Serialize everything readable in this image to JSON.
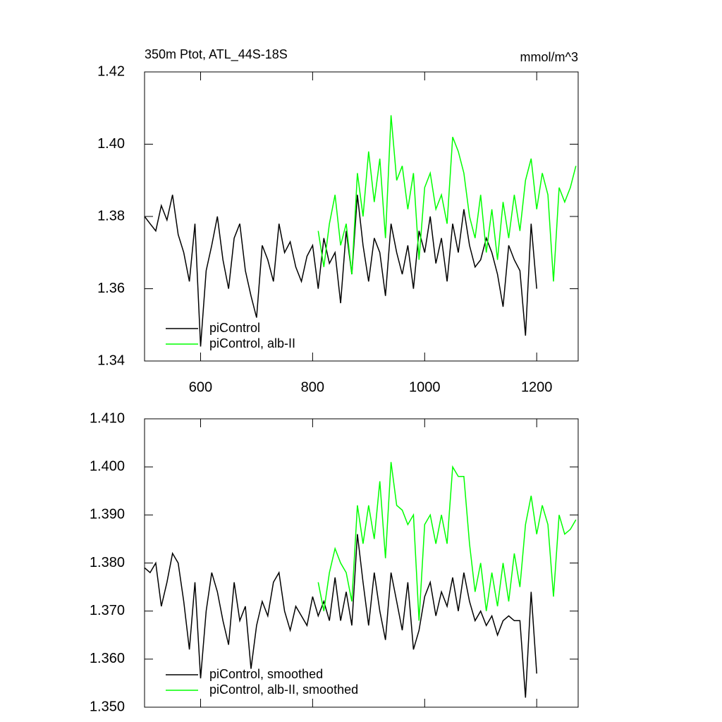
{
  "chart_data": [
    {
      "type": "line",
      "title": "350m Ptot, ATL_44S-18S",
      "units": "mmol/m^3",
      "xlim": [
        500,
        1274
      ],
      "xticks": [
        600,
        800,
        1000,
        1200
      ],
      "show_xtick_labels": true,
      "ylim": [
        1.34,
        1.42
      ],
      "yticks": [
        1.34,
        1.36,
        1.38,
        {
          "value": 1.4,
          "label": "1.40"
        },
        1.42
      ],
      "legend": "lower left",
      "series": [
        {
          "name": "piControl",
          "color": "#000000",
          "x": [
            500,
            510,
            520,
            530,
            540,
            550,
            560,
            570,
            580,
            590,
            600,
            610,
            620,
            630,
            640,
            650,
            660,
            670,
            680,
            690,
            700,
            710,
            720,
            730,
            740,
            750,
            760,
            770,
            780,
            790,
            800,
            810,
            820,
            830,
            840,
            850,
            860,
            870,
            880,
            890,
            900,
            910,
            920,
            930,
            940,
            950,
            960,
            970,
            980,
            990,
            1000,
            1010,
            1020,
            1030,
            1040,
            1050,
            1060,
            1070,
            1080,
            1090,
            1100,
            1110,
            1120,
            1130,
            1140,
            1150,
            1160,
            1170,
            1180,
            1190,
            1200
          ],
          "values": [
            1.38,
            1.378,
            1.376,
            1.383,
            1.379,
            1.386,
            1.375,
            1.37,
            1.362,
            1.378,
            1.344,
            1.365,
            1.372,
            1.38,
            1.368,
            1.36,
            1.374,
            1.378,
            1.365,
            1.358,
            1.352,
            1.372,
            1.368,
            1.362,
            1.378,
            1.37,
            1.373,
            1.366,
            1.362,
            1.369,
            1.372,
            1.36,
            1.374,
            1.367,
            1.37,
            1.356,
            1.376,
            1.364,
            1.386,
            1.372,
            1.362,
            1.374,
            1.37,
            1.358,
            1.378,
            1.37,
            1.364,
            1.372,
            1.36,
            1.376,
            1.37,
            1.38,
            1.367,
            1.374,
            1.362,
            1.378,
            1.37,
            1.382,
            1.372,
            1.366,
            1.368,
            1.374,
            1.37,
            1.364,
            1.355,
            1.372,
            1.368,
            1.365,
            1.347,
            1.378,
            1.36
          ]
        },
        {
          "name": "piControl, alb-II",
          "color": "#00ff00",
          "x": [
            810,
            820,
            830,
            840,
            850,
            860,
            870,
            880,
            890,
            900,
            910,
            920,
            930,
            940,
            950,
            960,
            970,
            980,
            990,
            1000,
            1010,
            1020,
            1030,
            1040,
            1050,
            1060,
            1070,
            1080,
            1090,
            1100,
            1110,
            1120,
            1130,
            1140,
            1150,
            1160,
            1170,
            1180,
            1190,
            1200,
            1210,
            1220,
            1230,
            1240,
            1250,
            1260,
            1270
          ],
          "values": [
            1.376,
            1.366,
            1.378,
            1.386,
            1.372,
            1.378,
            1.364,
            1.392,
            1.38,
            1.398,
            1.384,
            1.396,
            1.374,
            1.408,
            1.39,
            1.394,
            1.382,
            1.392,
            1.368,
            1.388,
            1.392,
            1.382,
            1.386,
            1.378,
            1.402,
            1.398,
            1.392,
            1.38,
            1.374,
            1.386,
            1.37,
            1.382,
            1.368,
            1.384,
            1.374,
            1.386,
            1.376,
            1.39,
            1.396,
            1.382,
            1.392,
            1.386,
            1.362,
            1.388,
            1.384,
            1.388,
            1.394
          ]
        }
      ]
    },
    {
      "type": "line",
      "xlim": [
        500,
        1274
      ],
      "xticks": [
        600,
        800,
        1000,
        1200
      ],
      "show_xtick_labels": false,
      "ylim": [
        1.35,
        1.41
      ],
      "yticks": [
        {
          "value": 1.35,
          "label": "1.350"
        },
        {
          "value": 1.36,
          "label": "1.360"
        },
        {
          "value": 1.37,
          "label": "1.370"
        },
        {
          "value": 1.38,
          "label": "1.380"
        },
        {
          "value": 1.39,
          "label": "1.390"
        },
        {
          "value": 1.4,
          "label": "1.400"
        },
        {
          "value": 1.41,
          "label": "1.410"
        }
      ],
      "legend": "lower left",
      "series": [
        {
          "name": "piControl, smoothed",
          "color": "#000000",
          "x": [
            500,
            510,
            520,
            530,
            540,
            550,
            560,
            570,
            580,
            590,
            600,
            610,
            620,
            630,
            640,
            650,
            660,
            670,
            680,
            690,
            700,
            710,
            720,
            730,
            740,
            750,
            760,
            770,
            780,
            790,
            800,
            810,
            820,
            830,
            840,
            850,
            860,
            870,
            880,
            890,
            900,
            910,
            920,
            930,
            940,
            950,
            960,
            970,
            980,
            990,
            1000,
            1010,
            1020,
            1030,
            1040,
            1050,
            1060,
            1070,
            1080,
            1090,
            1100,
            1110,
            1120,
            1130,
            1140,
            1150,
            1160,
            1170,
            1180,
            1190,
            1200
          ],
          "values": [
            1.379,
            1.378,
            1.38,
            1.371,
            1.376,
            1.382,
            1.38,
            1.372,
            1.362,
            1.376,
            1.356,
            1.37,
            1.378,
            1.374,
            1.368,
            1.363,
            1.376,
            1.368,
            1.371,
            1.358,
            1.367,
            1.372,
            1.369,
            1.376,
            1.378,
            1.37,
            1.366,
            1.371,
            1.369,
            1.367,
            1.373,
            1.369,
            1.372,
            1.368,
            1.377,
            1.368,
            1.374,
            1.367,
            1.386,
            1.376,
            1.367,
            1.378,
            1.37,
            1.364,
            1.378,
            1.372,
            1.366,
            1.376,
            1.362,
            1.366,
            1.373,
            1.376,
            1.369,
            1.374,
            1.371,
            1.377,
            1.37,
            1.378,
            1.372,
            1.368,
            1.37,
            1.367,
            1.369,
            1.365,
            1.368,
            1.369,
            1.368,
            1.368,
            1.352,
            1.374,
            1.357
          ]
        },
        {
          "name": "piControl, alb-II, smoothed",
          "color": "#00ff00",
          "x": [
            810,
            820,
            830,
            840,
            850,
            860,
            870,
            880,
            890,
            900,
            910,
            920,
            930,
            940,
            950,
            960,
            970,
            980,
            990,
            1000,
            1010,
            1020,
            1030,
            1040,
            1050,
            1060,
            1070,
            1080,
            1090,
            1100,
            1110,
            1120,
            1130,
            1140,
            1150,
            1160,
            1170,
            1180,
            1190,
            1200,
            1210,
            1220,
            1230,
            1240,
            1250,
            1260,
            1270
          ],
          "values": [
            1.376,
            1.37,
            1.378,
            1.383,
            1.38,
            1.378,
            1.372,
            1.392,
            1.384,
            1.392,
            1.385,
            1.397,
            1.381,
            1.401,
            1.392,
            1.391,
            1.388,
            1.39,
            1.368,
            1.388,
            1.39,
            1.384,
            1.39,
            1.384,
            1.4,
            1.398,
            1.398,
            1.384,
            1.374,
            1.38,
            1.37,
            1.378,
            1.371,
            1.38,
            1.372,
            1.382,
            1.375,
            1.388,
            1.394,
            1.386,
            1.392,
            1.388,
            1.373,
            1.39,
            1.386,
            1.387,
            1.389
          ]
        }
      ]
    }
  ]
}
